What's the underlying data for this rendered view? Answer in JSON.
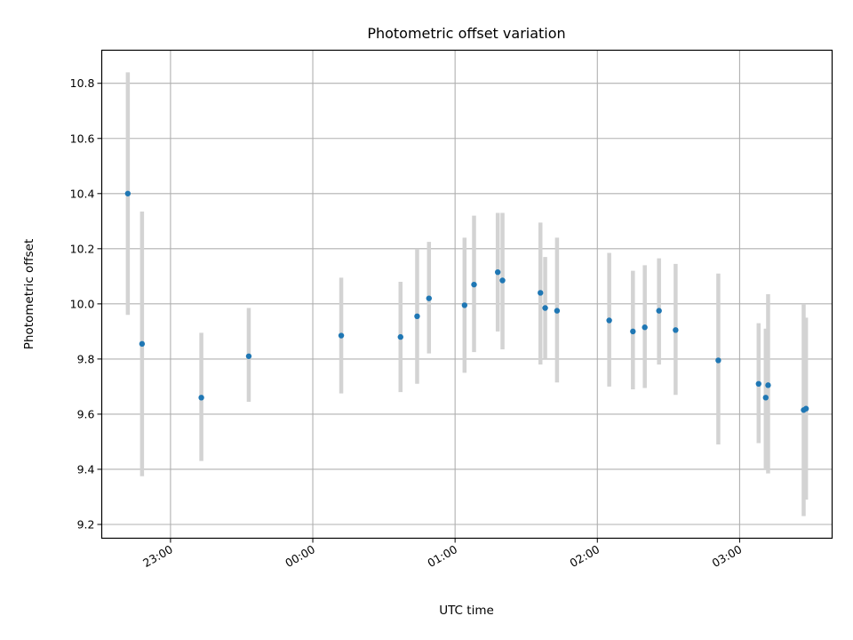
{
  "chart_data": {
    "type": "scatter",
    "title": "Photometric offset variation",
    "xlabel": "UTC time",
    "ylabel": "Photometric offset",
    "x_is_time": true,
    "grid": true,
    "colors": {
      "marker": "#1f77b4",
      "errorbar": "#d3d3d3",
      "grid": "#b0b0b0",
      "axes": "#000000"
    },
    "xlim": [
      "22:31",
      "03:39"
    ],
    "ylim": [
      9.15,
      10.92
    ],
    "x_ticks": [
      "23:00",
      "00:00",
      "01:00",
      "02:00",
      "03:00"
    ],
    "y_ticks": [
      "9.2",
      "9.4",
      "9.6",
      "9.8",
      "10.0",
      "10.2",
      "10.4",
      "10.6",
      "10.8"
    ],
    "series": [
      {
        "points": [
          {
            "x": "22:42",
            "y": 10.4,
            "err_low": 9.96,
            "err_high": 10.84
          },
          {
            "x": "22:48",
            "y": 9.855,
            "err_low": 9.375,
            "err_high": 10.335
          },
          {
            "x": "23:13",
            "y": 9.66,
            "err_low": 9.43,
            "err_high": 9.895
          },
          {
            "x": "23:33",
            "y": 9.81,
            "err_low": 9.645,
            "err_high": 9.985
          },
          {
            "x": "00:12",
            "y": 9.885,
            "err_low": 9.675,
            "err_high": 10.095
          },
          {
            "x": "00:37",
            "y": 9.88,
            "err_low": 9.68,
            "err_high": 10.08
          },
          {
            "x": "00:44",
            "y": 9.955,
            "err_low": 9.71,
            "err_high": 10.2
          },
          {
            "x": "00:49",
            "y": 10.02,
            "err_low": 9.82,
            "err_high": 10.225
          },
          {
            "x": "01:04",
            "y": 9.995,
            "err_low": 9.75,
            "err_high": 10.24
          },
          {
            "x": "01:08",
            "y": 10.07,
            "err_low": 9.825,
            "err_high": 10.32
          },
          {
            "x": "01:18",
            "y": 10.115,
            "err_low": 9.9,
            "err_high": 10.33
          },
          {
            "x": "01:20",
            "y": 10.085,
            "err_low": 9.835,
            "err_high": 10.33
          },
          {
            "x": "01:36",
            "y": 10.04,
            "err_low": 9.78,
            "err_high": 10.295
          },
          {
            "x": "01:38",
            "y": 9.985,
            "err_low": 9.8,
            "err_high": 10.17
          },
          {
            "x": "01:43",
            "y": 9.975,
            "err_low": 9.715,
            "err_high": 10.24
          },
          {
            "x": "02:05",
            "y": 9.94,
            "err_low": 9.7,
            "err_high": 10.185
          },
          {
            "x": "02:15",
            "y": 9.9,
            "err_low": 9.69,
            "err_high": 10.12
          },
          {
            "x": "02:20",
            "y": 9.915,
            "err_low": 9.695,
            "err_high": 10.14
          },
          {
            "x": "02:26",
            "y": 9.975,
            "err_low": 9.78,
            "err_high": 10.165
          },
          {
            "x": "02:33",
            "y": 9.905,
            "err_low": 9.67,
            "err_high": 10.145
          },
          {
            "x": "02:51",
            "y": 9.795,
            "err_low": 9.49,
            "err_high": 10.11
          },
          {
            "x": "03:08",
            "y": 9.71,
            "err_low": 9.495,
            "err_high": 9.93
          },
          {
            "x": "03:11",
            "y": 9.66,
            "err_low": 9.4,
            "err_high": 9.91
          },
          {
            "x": "03:12",
            "y": 9.705,
            "err_low": 9.385,
            "err_high": 10.035
          },
          {
            "x": "03:27",
            "y": 9.615,
            "err_low": 9.23,
            "err_high": 10.0
          },
          {
            "x": "03:28",
            "y": 9.62,
            "err_low": 9.29,
            "err_high": 9.95
          }
        ]
      }
    ]
  }
}
